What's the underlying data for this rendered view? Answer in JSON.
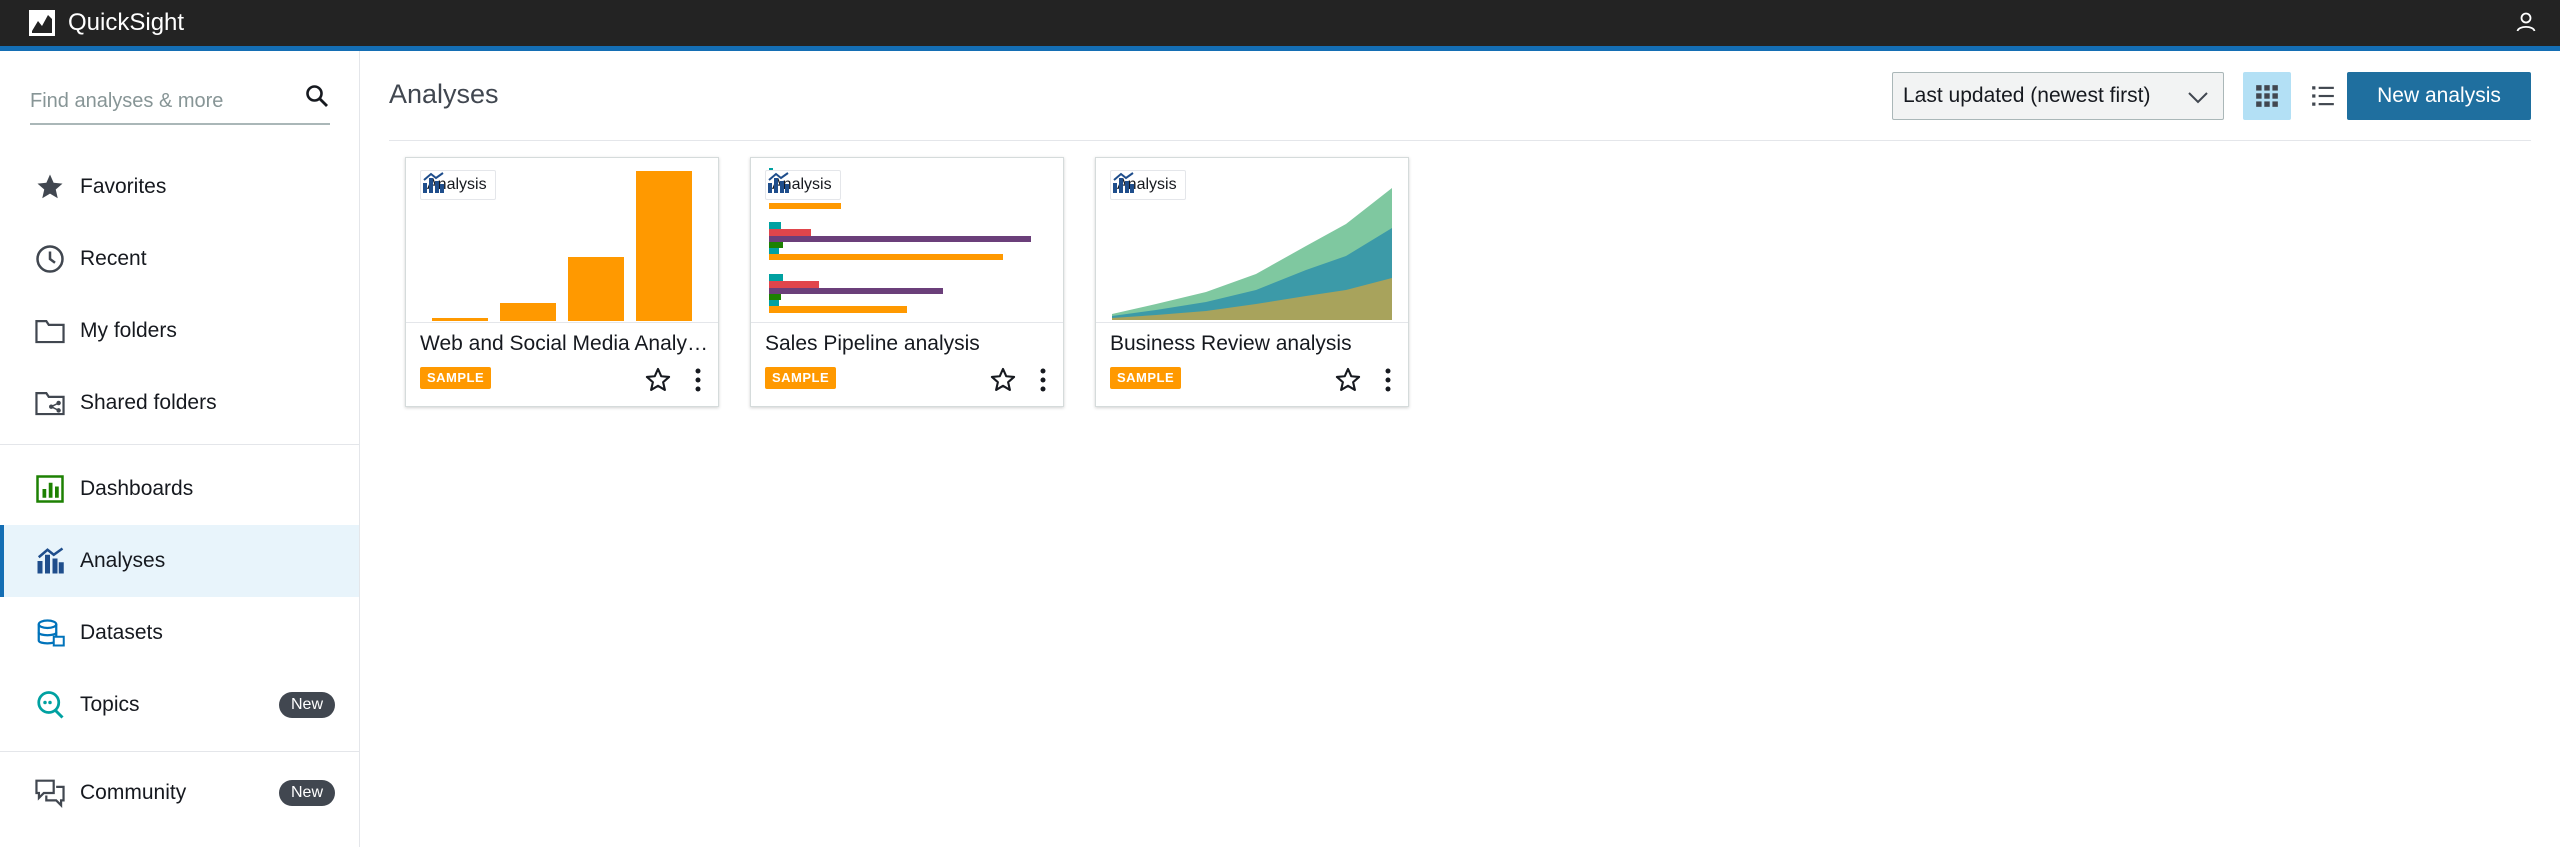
{
  "app": {
    "title": "QuickSight"
  },
  "sidebar": {
    "search_placeholder": "Find analyses & more",
    "items": [
      {
        "label": "Favorites",
        "icon": "star-icon"
      },
      {
        "label": "Recent",
        "icon": "clock-icon"
      },
      {
        "label": "My folders",
        "icon": "folder-icon"
      },
      {
        "label": "Shared folders",
        "icon": "shared-folder-icon"
      },
      {
        "label": "Dashboards",
        "icon": "dashboard-icon"
      },
      {
        "label": "Analyses",
        "icon": "analysis-icon",
        "active": true
      },
      {
        "label": "Datasets",
        "icon": "dataset-icon"
      },
      {
        "label": "Topics",
        "icon": "topics-icon",
        "badge": "New"
      },
      {
        "label": "Community",
        "icon": "community-icon",
        "badge": "New"
      }
    ]
  },
  "main": {
    "title": "Analyses",
    "sort_label": "Last updated (newest first)",
    "new_button": "New analysis",
    "cards": [
      {
        "title": "Web and Social Media Analytics analysis",
        "type": "Analysis",
        "badge": "SAMPLE",
        "thumb": "bar"
      },
      {
        "title": "Sales Pipeline analysis",
        "type": "Analysis",
        "badge": "SAMPLE",
        "thumb": "hbar"
      },
      {
        "title": "Business Review analysis",
        "type": "Analysis",
        "badge": "SAMPLE",
        "thumb": "area"
      }
    ]
  },
  "colors": {
    "topbar": "#232323",
    "accent": "#146eb4",
    "orange": "#ff9900",
    "primary_button": "#1f6f9f"
  }
}
